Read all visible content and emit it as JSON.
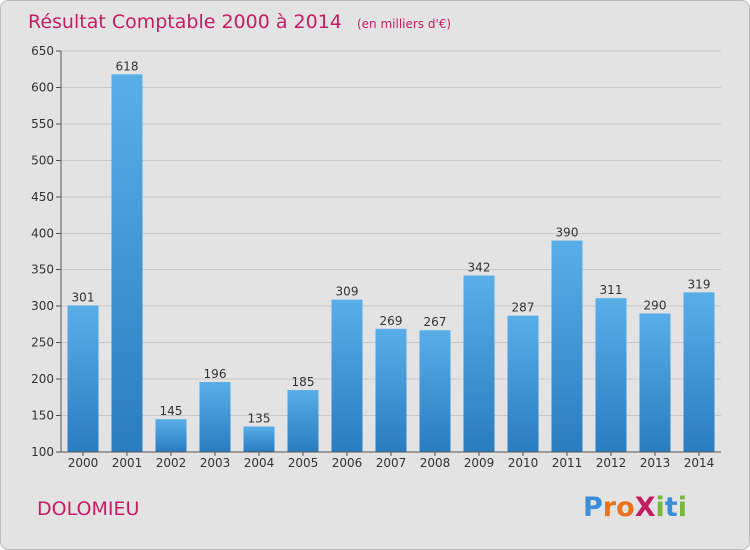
{
  "chart_data": {
    "type": "bar",
    "title": "Résultat Comptable 2000 à 2014",
    "subtitle": "(en milliers d'€)",
    "categories": [
      "2000",
      "2001",
      "2002",
      "2003",
      "2004",
      "2005",
      "2006",
      "2007",
      "2008",
      "2009",
      "2010",
      "2011",
      "2012",
      "2013",
      "2014"
    ],
    "values": [
      301,
      618,
      145,
      196,
      135,
      185,
      309,
      269,
      267,
      342,
      287,
      390,
      311,
      290,
      319
    ],
    "yticks": [
      100,
      150,
      200,
      250,
      300,
      350,
      400,
      450,
      500,
      550,
      600,
      650
    ],
    "ylim": [
      100,
      650
    ],
    "grid": true,
    "bar_color_top": "#5aaee8",
    "bar_color_bottom": "#2a7cc0",
    "accent_color": "#c31e62"
  },
  "location": "DOLOMIEU",
  "logo": {
    "text": "ProXiti",
    "letters": [
      {
        "ch": "P",
        "color": "#3a8fd8"
      },
      {
        "ch": "r",
        "color": "#e8731c"
      },
      {
        "ch": "o",
        "color": "#e8731c"
      },
      {
        "ch": "X",
        "color": "#c31e62"
      },
      {
        "ch": "i",
        "color": "#7ab839"
      },
      {
        "ch": "t",
        "color": "#3a8fd8"
      },
      {
        "ch": "i",
        "color": "#7ab839"
      }
    ]
  }
}
